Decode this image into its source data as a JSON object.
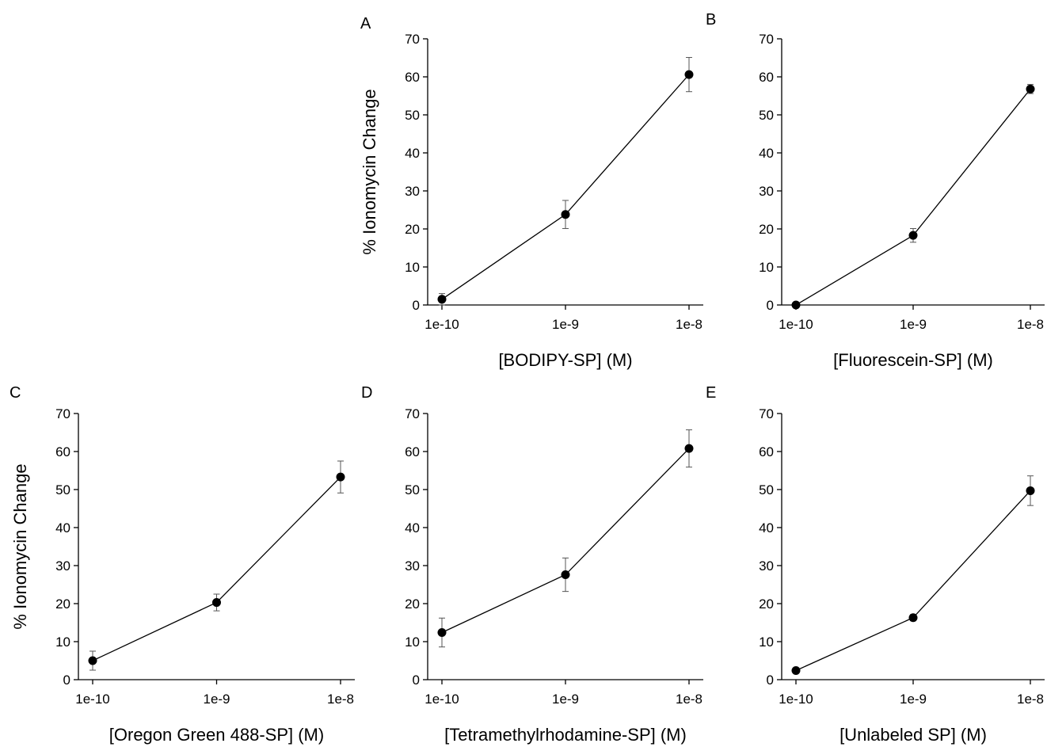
{
  "chart_data": [
    {
      "panel_label": "A",
      "type": "line",
      "x": [
        "1e-10",
        "1e-9",
        "1e-8"
      ],
      "x_scale": "log",
      "values": [
        1.5,
        23.8,
        60.6
      ],
      "error": [
        1.5,
        3.7,
        4.5
      ],
      "xlabel": "[BODIPY-SP] (M)",
      "ylabel": "% Ionomycin Change",
      "ylim": [
        0,
        70
      ],
      "yticks": [
        0,
        10,
        20,
        30,
        40,
        50,
        60,
        70
      ],
      "grid": false
    },
    {
      "panel_label": "B",
      "type": "line",
      "x": [
        "1e-10",
        "1e-9",
        "1e-8"
      ],
      "x_scale": "log",
      "values": [
        0,
        18.3,
        56.8
      ],
      "error": [
        0,
        1.8,
        1.2
      ],
      "xlabel": "[Fluorescein-SP] (M)",
      "ylabel": "",
      "ylim": [
        0,
        70
      ],
      "yticks": [
        0,
        10,
        20,
        30,
        40,
        50,
        60,
        70
      ],
      "grid": false
    },
    {
      "panel_label": "C",
      "type": "line",
      "x": [
        "1e-10",
        "1e-9",
        "1e-8"
      ],
      "x_scale": "log",
      "values": [
        5.0,
        20.3,
        53.3
      ],
      "error": [
        2.5,
        2.2,
        4.2
      ],
      "xlabel": "[Oregon Green 488-SP] (M)",
      "ylabel": "% Ionomycin Change",
      "ylim": [
        0,
        70
      ],
      "yticks": [
        0,
        10,
        20,
        30,
        40,
        50,
        60,
        70
      ],
      "grid": false
    },
    {
      "panel_label": "D",
      "type": "line",
      "x": [
        "1e-10",
        "1e-9",
        "1e-8"
      ],
      "x_scale": "log",
      "values": [
        12.4,
        27.6,
        60.8
      ],
      "error": [
        3.8,
        4.4,
        4.9
      ],
      "xlabel": "[Tetramethylrhodamine-SP] (M)",
      "ylabel": "",
      "ylim": [
        0,
        70
      ],
      "yticks": [
        0,
        10,
        20,
        30,
        40,
        50,
        60,
        70
      ],
      "grid": false
    },
    {
      "panel_label": "E",
      "type": "line",
      "x": [
        "1e-10",
        "1e-9",
        "1e-8"
      ],
      "x_scale": "log",
      "values": [
        2.4,
        16.3,
        49.7
      ],
      "error": [
        0.6,
        0.8,
        3.9
      ],
      "xlabel": "[Unlabeled SP] (M)",
      "ylabel": "",
      "ylim": [
        0,
        70
      ],
      "yticks": [
        0,
        10,
        20,
        30,
        40,
        50,
        60,
        70
      ],
      "grid": false
    }
  ]
}
